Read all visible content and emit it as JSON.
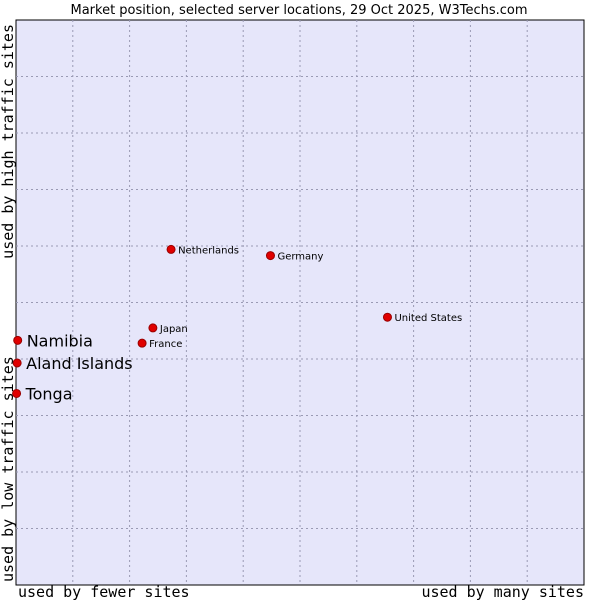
{
  "chart_data": {
    "type": "scatter",
    "title": "Market position, selected server locations, 29 Oct 2025, W3Techs.com",
    "xlabel_low": "used by fewer sites",
    "xlabel_high": "used by many sites",
    "ylabel_low": "used by low traffic sites",
    "ylabel_high": "used by high traffic sites",
    "xlim": [
      0,
      100
    ],
    "ylim": [
      0,
      100
    ],
    "grid": true,
    "colors": {
      "plot_background": "#e6e6fa",
      "grid": "#9a9ab4",
      "point": "#e00000",
      "point_border": "#990000"
    },
    "points": [
      {
        "label": "Netherlands",
        "x": 27.3,
        "y": 59.4,
        "emphasis": false
      },
      {
        "label": "Germany",
        "x": 44.8,
        "y": 58.3,
        "emphasis": false
      },
      {
        "label": "United States",
        "x": 65.4,
        "y": 47.4,
        "emphasis": false
      },
      {
        "label": "Japan",
        "x": 24.1,
        "y": 45.5,
        "emphasis": false
      },
      {
        "label": "France",
        "x": 22.2,
        "y": 42.8,
        "emphasis": false
      },
      {
        "label": "Namibia",
        "x": 0.3,
        "y": 43.3,
        "emphasis": true
      },
      {
        "label": "Aland Islands",
        "x": 0.2,
        "y": 39.3,
        "emphasis": true
      },
      {
        "label": "Tonga",
        "x": 0.1,
        "y": 33.9,
        "emphasis": true
      }
    ]
  }
}
